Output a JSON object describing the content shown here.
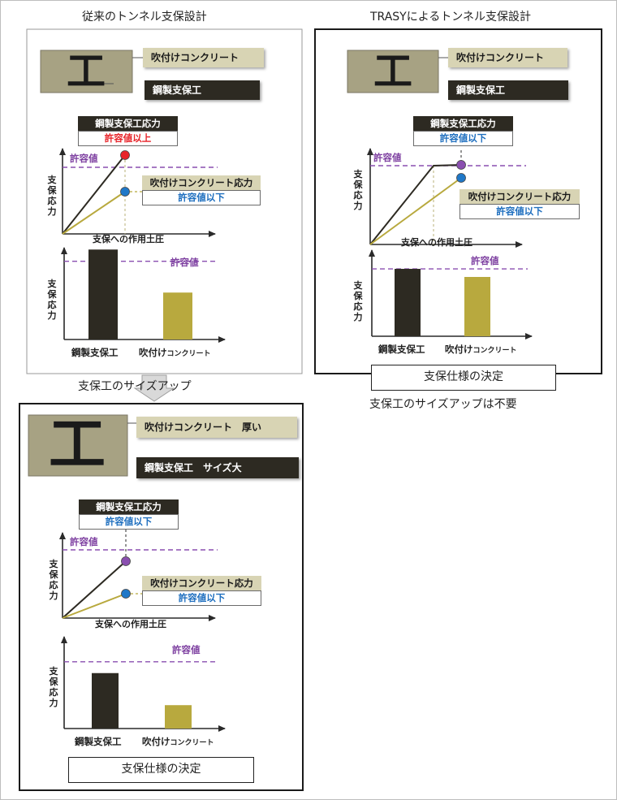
{
  "titles": {
    "conventional": "従来のトンネル支保設計",
    "trasy": "TRASYによるトンネル支保設計",
    "sizeup_arrow": "支保工のサイズアップ",
    "no_sizeup": "支保工のサイズアップは不要"
  },
  "labels": {
    "shotcrete": "吹付けコンクリート",
    "shotcrete_thick": "吹付けコンクリート　厚い",
    "steel": "鋼製支保工",
    "steel_large": "鋼製支保工　サイズ大",
    "steel_stress": "鋼製支保工応力",
    "shotcrete_stress": "吹付けコンクリート応力",
    "over_allowable": "許容値以上",
    "under_allowable": "許容値以下",
    "allowable_value": "許容値",
    "axis_stress": "支保応力",
    "axis_pressure": "支保への作用土圧",
    "bar_steel": "鋼製支保工",
    "bar_shotcrete_main": "吹付け",
    "bar_shotcrete_small": "コンクリート",
    "decision": "支保仕様の決定",
    "beam_icon": "工"
  },
  "colors": {
    "steel": "#2d2a22",
    "shotcrete": "#b8a93e",
    "allowable": "#8a4fb0",
    "exceed": "#e8242a",
    "ok": "#1f78c8",
    "panel_fill": "#a7a283"
  },
  "chart_data": [
    {
      "type": "bar",
      "panel": "conventional",
      "categories": [
        "鋼製支保工",
        "吹付けコンクリート"
      ],
      "values": [
        1.15,
        0.6
      ],
      "allowable": 1.0,
      "ylim": [
        0,
        1.35
      ],
      "ylabel": "支保応力",
      "title": ""
    },
    {
      "type": "bar",
      "panel": "trasy",
      "categories": [
        "鋼製支保工",
        "吹付けコンクリート"
      ],
      "values": [
        1.0,
        0.88
      ],
      "allowable": 1.0,
      "ylim": [
        0,
        1.35
      ],
      "ylabel": "支保応力",
      "title": ""
    },
    {
      "type": "bar",
      "panel": "sizeup",
      "categories": [
        "鋼製支保工",
        "吹付けコンクリート"
      ],
      "values": [
        0.83,
        0.35
      ],
      "allowable": 1.0,
      "ylim": [
        0,
        1.35
      ],
      "ylabel": "支保応力",
      "title": ""
    }
  ]
}
